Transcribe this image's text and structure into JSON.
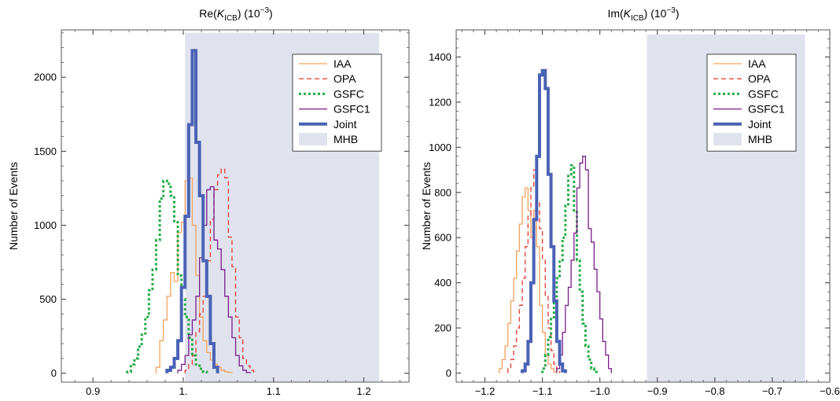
{
  "chart_data": [
    {
      "type": "histogram",
      "title_main": "Re(",
      "title_k": "K",
      "title_sub": "ICB",
      "title_close": ") (10",
      "title_exp": "−3",
      "title_end": ")",
      "ylabel": "Number of Events",
      "xlim": [
        0.865,
        1.25
      ],
      "ylim": [
        -60,
        2320
      ],
      "x_ticks": [
        0.9,
        1.0,
        1.1,
        1.2
      ],
      "x_tick_labels": [
        "0.9",
        "1.",
        "1.1",
        "1.2"
      ],
      "y_ticks": [
        0,
        500,
        1000,
        1500,
        2000
      ],
      "y_tick_labels": [
        "0",
        "500",
        "1000",
        "1500",
        "2000"
      ],
      "legend_position": "top-right",
      "band": {
        "name": "MHB",
        "x0": 1.002,
        "x1": 1.217,
        "y0": -60,
        "y1": 2300
      },
      "series": [
        {
          "name": "IAA",
          "color": "#f5a15c",
          "dash": "",
          "width": 1.3,
          "x0": 0.97,
          "bin": 0.004,
          "values": [
            40,
            220,
            360,
            520,
            680,
            620,
            950,
            1020,
            1300,
            1320,
            1000,
            660,
            380,
            220,
            140,
            90,
            60,
            40,
            20,
            10,
            5
          ]
        },
        {
          "name": "OPA",
          "color": "#e8443a",
          "dash": "6,4",
          "width": 1.4,
          "x0": 1.002,
          "bin": 0.004,
          "values": [
            20,
            60,
            120,
            280,
            400,
            520,
            760,
            1040,
            1240,
            1340,
            1380,
            1320,
            920,
            720,
            380,
            240,
            100,
            50,
            20
          ]
        },
        {
          "name": "GSFC",
          "color": "#22aa44",
          "dash": "3,3",
          "width": 3,
          "x0": 0.938,
          "bin": 0.004,
          "values": [
            10,
            60,
            100,
            180,
            260,
            380,
            560,
            700,
            900,
            1180,
            1300,
            1280,
            1200,
            1020,
            660,
            500,
            380,
            240,
            120,
            60,
            30,
            10
          ]
        },
        {
          "name": "GSFC1",
          "color": "#7a1c8a",
          "dash": "",
          "width": 1.3,
          "x0": 0.994,
          "bin": 0.004,
          "values": [
            20,
            60,
            120,
            260,
            360,
            520,
            780,
            1000,
            1240,
            1260,
            900,
            840,
            700,
            520,
            380,
            240,
            120,
            50,
            20,
            5
          ]
        },
        {
          "name": "Joint",
          "color": "#4a62b5",
          "dash": "",
          "width": 4,
          "x0": 0.982,
          "bin": 0.004,
          "values": [
            20,
            40,
            100,
            220,
            580,
            1060,
            1680,
            2180,
            1560,
            1200,
            760,
            520,
            200,
            40
          ]
        }
      ],
      "legend_items": [
        "IAA",
        "OPA",
        "GSFC",
        "GSFC1",
        "Joint",
        "MHB"
      ]
    },
    {
      "type": "histogram",
      "title_main": "Im(",
      "title_k": "K",
      "title_sub": "ICB",
      "title_close": ") (10",
      "title_exp": "−3",
      "title_end": ")",
      "ylabel": "Number of Events",
      "xlim": [
        -1.25,
        -0.6
      ],
      "ylim": [
        -40,
        1520
      ],
      "x_ticks": [
        -1.2,
        -1.1,
        -1.0,
        -0.9,
        -0.8,
        -0.7,
        -0.6
      ],
      "x_tick_labels": [
        "−1.2",
        "−1.1",
        "−1.0",
        "−0.9",
        "−0.8",
        "−0.7",
        "−0.6"
      ],
      "y_ticks": [
        0,
        200,
        400,
        600,
        800,
        1000,
        1200,
        1400
      ],
      "y_tick_labels": [
        "0",
        "200",
        "400",
        "600",
        "800",
        "1000",
        "1200",
        "1400"
      ],
      "legend_position": "top-right",
      "band": {
        "name": "MHB",
        "x0": -0.918,
        "x1": -0.643,
        "y0": -40,
        "y1": 1500
      },
      "series": [
        {
          "name": "IAA",
          "color": "#f5a15c",
          "dash": "",
          "width": 1.3,
          "x0": -1.175,
          "bin": 0.005,
          "values": [
            20,
            60,
            120,
            220,
            320,
            420,
            540,
            660,
            780,
            820,
            720,
            600,
            720,
            560,
            300,
            180,
            80,
            40,
            20,
            5
          ]
        },
        {
          "name": "OPA",
          "color": "#e8443a",
          "dash": "6,4",
          "width": 1.4,
          "x0": -1.16,
          "bin": 0.005,
          "values": [
            20,
            60,
            120,
            200,
            300,
            420,
            560,
            700,
            820,
            900,
            760,
            640,
            500,
            340,
            200,
            100,
            40,
            10
          ]
        },
        {
          "name": "GSFC",
          "color": "#22aa44",
          "dash": "3,3",
          "width": 3,
          "x0": -1.1,
          "bin": 0.005,
          "values": [
            20,
            80,
            160,
            240,
            340,
            420,
            500,
            600,
            740,
            880,
            920,
            720,
            500,
            360,
            220,
            120,
            60,
            20,
            5
          ]
        },
        {
          "name": "GSFC1",
          "color": "#7a1c8a",
          "dash": "",
          "width": 1.3,
          "x0": -1.075,
          "bin": 0.005,
          "values": [
            20,
            80,
            180,
            300,
            380,
            500,
            620,
            820,
            930,
            960,
            900,
            640,
            580,
            460,
            360,
            240,
            140,
            80,
            20
          ]
        },
        {
          "name": "Joint",
          "color": "#4a62b5",
          "dash": "",
          "width": 4,
          "x0": -1.135,
          "bin": 0.005,
          "values": [
            10,
            40,
            140,
            400,
            680,
            960,
            1320,
            1340,
            1260,
            880,
            560,
            320,
            140,
            40,
            10
          ]
        }
      ],
      "legend_items": [
        "IAA",
        "OPA",
        "GSFC",
        "GSFC1",
        "Joint",
        "MHB"
      ]
    }
  ],
  "colors": {
    "band": "#e0e3ee",
    "frame": "#555555"
  }
}
